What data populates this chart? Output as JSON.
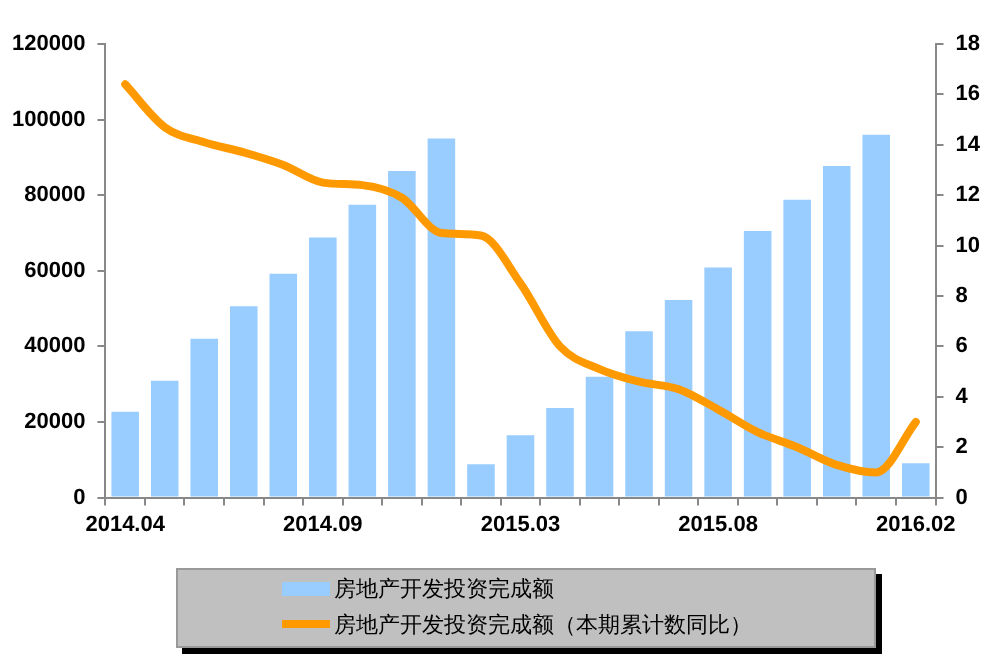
{
  "chart_data": {
    "type": "bar",
    "categories": [
      "2014.04",
      null,
      null,
      null,
      null,
      "2014.09",
      null,
      null,
      null,
      null,
      "2015.03",
      null,
      null,
      null,
      null,
      "2015.08",
      null,
      null,
      null,
      null,
      "2016.02"
    ],
    "series": [
      {
        "name": "房地产开发投资完成额",
        "color": "#99ccff",
        "values": [
          22700,
          30900,
          42000,
          50600,
          59200,
          68800,
          77500,
          86400,
          95000,
          8800,
          16500,
          23700,
          32000,
          44000,
          52300,
          60900,
          70500,
          78800,
          87700,
          96000,
          9100
        ]
      },
      {
        "name": "房地产开发投资完成额（本期累计数同比）",
        "type": "line",
        "axis": "y2",
        "color": "#ff9900",
        "values": [
          16.4,
          14.7,
          14.1,
          13.7,
          13.2,
          12.5,
          12.4,
          11.9,
          10.5,
          10.4,
          8.5,
          6.0,
          5.1,
          4.6,
          4.3,
          3.5,
          2.6,
          2.0,
          1.3,
          1.0,
          3.0
        ]
      }
    ],
    "ylim": [
      0,
      120000
    ],
    "yticks": [
      0,
      20000,
      40000,
      60000,
      80000,
      100000,
      120000
    ],
    "y2lim": [
      0,
      18
    ],
    "y2ticks": [
      0,
      2,
      4,
      6,
      8,
      10,
      12,
      14,
      16,
      18
    ],
    "grid": false,
    "legend": "bottom",
    "marker": "none",
    "line_style": "solid"
  }
}
